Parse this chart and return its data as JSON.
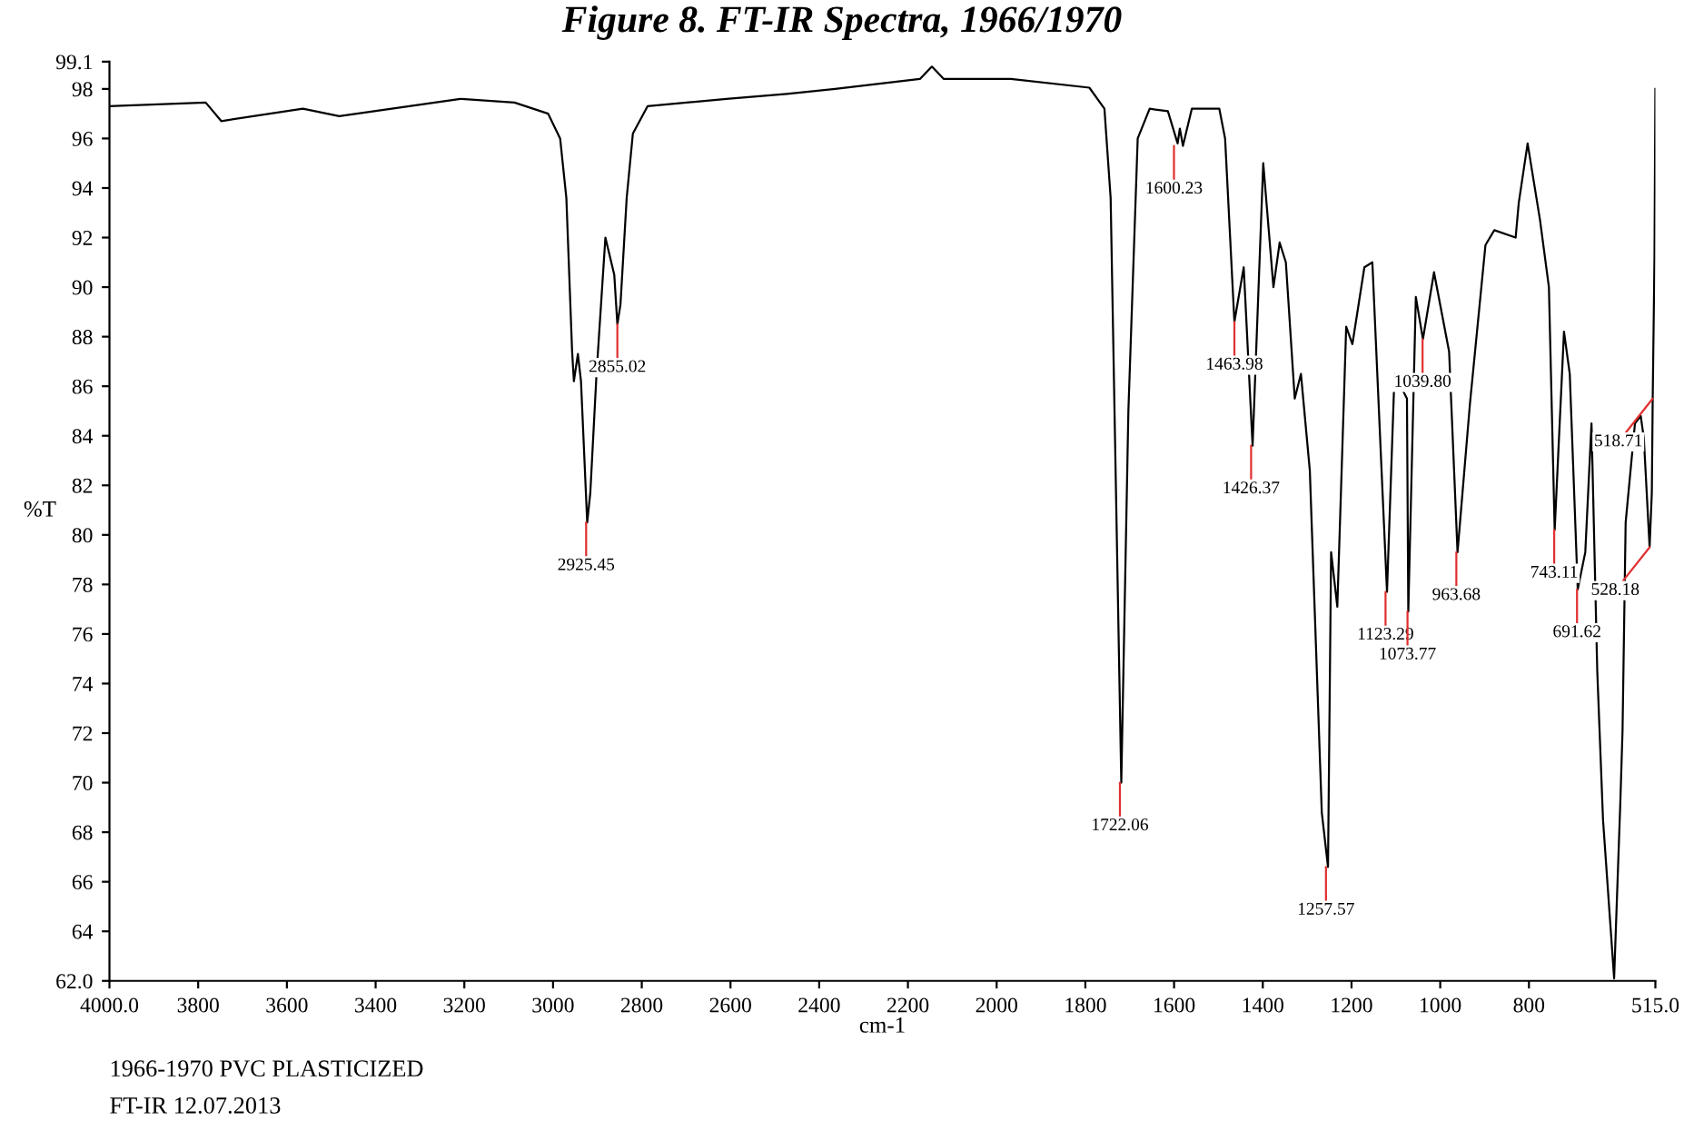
{
  "chart_data": {
    "type": "line",
    "title": "Figure 8. FT-IR Spectra, 1966/1970",
    "xlabel": "cm-1",
    "ylabel": "%T",
    "xlim": [
      4000,
      515
    ],
    "ylim": [
      62,
      99.1
    ],
    "xticks": [
      {
        "value": 4000,
        "label": "4000.0"
      },
      3800,
      3600,
      3400,
      3200,
      3000,
      2800,
      2600,
      2400,
      2200,
      2000,
      1800,
      1600,
      1400,
      1200,
      1000,
      800,
      {
        "value": 515,
        "label": "515.0"
      }
    ],
    "yticks": [
      {
        "value": 62,
        "label": "62.0"
      },
      64,
      66,
      68,
      70,
      72,
      74,
      76,
      78,
      80,
      82,
      84,
      86,
      88,
      90,
      92,
      94,
      96,
      98,
      99.1
    ],
    "grid": false,
    "marker": "none",
    "line_style": "solid",
    "series": [
      {
        "color": "#000000",
        "x": [
          4000,
          3783,
          3748,
          3564,
          3482,
          3209,
          3087,
          3011,
          2984,
          2970,
          2957,
          2953,
          2944,
          2937,
          2923,
          2916,
          2902,
          2882,
          2862,
          2855,
          2848,
          2834,
          2820,
          2787,
          2609,
          2473,
          2364,
          2173,
          2146,
          2119,
          1968,
          1791,
          1757,
          1743,
          1719,
          1703,
          1682,
          1655,
          1614,
          1592,
          1587,
          1580,
          1560,
          1498,
          1485,
          1464,
          1443,
          1423,
          1399,
          1376,
          1362,
          1348,
          1328,
          1314,
          1294,
          1267,
          1253,
          1246,
          1232,
          1212,
          1198,
          1171,
          1153,
          1130,
          1120,
          1103,
          1075,
          1072,
          1055,
          1039,
          1014,
          980,
          961,
          933,
          898,
          878,
          830,
          823,
          803,
          775,
          755,
          742,
          721,
          708,
          690,
          673,
          659,
          646,
          633,
          608,
          594,
          589,
          582,
          561,
          548,
          541,
          528,
          523,
          521,
          517,
          515
        ],
        "values": [
          97.3,
          97.45,
          96.7,
          97.2,
          96.9,
          97.6,
          97.45,
          97.0,
          96.0,
          93.6,
          87.4,
          86.2,
          87.3,
          86.2,
          80.5,
          81.7,
          86.5,
          92.0,
          90.5,
          88.5,
          89.3,
          93.6,
          96.2,
          97.3,
          97.6,
          97.8,
          98.0,
          98.4,
          98.9,
          98.4,
          98.4,
          98.05,
          97.2,
          93.6,
          70.0,
          85.0,
          96.0,
          97.2,
          97.1,
          95.8,
          96.4,
          95.7,
          97.2,
          97.2,
          96.0,
          88.6,
          90.8,
          83.6,
          95.0,
          90.0,
          91.8,
          91.0,
          85.5,
          86.5,
          82.6,
          68.8,
          66.6,
          79.3,
          77.1,
          88.4,
          87.7,
          90.8,
          91.0,
          81.7,
          77.7,
          86.5,
          85.5,
          76.9,
          89.6,
          87.9,
          90.6,
          87.4,
          79.3,
          85.3,
          91.7,
          92.3,
          92.0,
          93.4,
          95.8,
          92.7,
          90.0,
          80.2,
          88.2,
          86.5,
          77.8,
          79.3,
          84.5,
          74.5,
          68.5,
          62.1,
          69.2,
          72.1,
          80.5,
          84.5,
          84.8,
          83.9,
          79.5,
          81.7,
          85.5,
          91.2,
          98.0
        ]
      }
    ],
    "annotations": [
      {
        "text": "2925.45",
        "x": 2925.45,
        "y": 80.5
      },
      {
        "text": "2855.02",
        "x": 2855.02,
        "y": 88.5
      },
      {
        "text": "1722.06",
        "x": 1722.06,
        "y": 70.0
      },
      {
        "text": "1600.23",
        "x": 1600.23,
        "y": 95.7
      },
      {
        "text": "1463.98",
        "x": 1463.98,
        "y": 88.6
      },
      {
        "text": "1426.37",
        "x": 1426.37,
        "y": 83.6
      },
      {
        "text": "1257.57",
        "x": 1257.57,
        "y": 66.6
      },
      {
        "text": "1123.29",
        "x": 1123.29,
        "y": 77.7
      },
      {
        "text": "1073.77",
        "x": 1073.77,
        "y": 76.9
      },
      {
        "text": "1039.80",
        "x": 1039.8,
        "y": 87.9
      },
      {
        "text": "963.68",
        "x": 963.68,
        "y": 79.3
      },
      {
        "text": "743.11",
        "x": 743.11,
        "y": 80.2
      },
      {
        "text": "691.62",
        "x": 691.62,
        "y": 77.8
      },
      {
        "text": "528.18",
        "x": 528,
        "y": 79.5
      },
      {
        "text": "518.71",
        "x": 521,
        "y": 85.5
      },
      "1966-1970 PVC PLASTICIZED",
      "FT-IR 12.07.2013"
    ]
  }
}
